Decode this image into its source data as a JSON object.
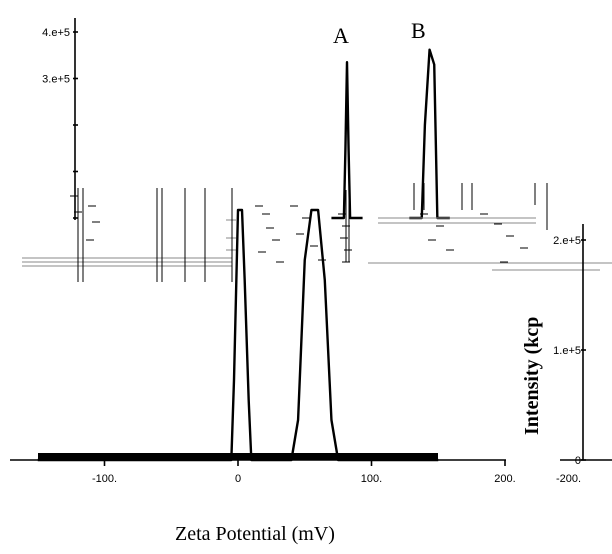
{
  "chart_data": [
    {
      "type": "line",
      "title": "",
      "xlabel": "",
      "ylabel": "",
      "ylim": [
        0,
        400000
      ],
      "yticks": [
        0,
        100000,
        200000,
        300000,
        400000
      ],
      "yticklabels": [
        "",
        "",
        "",
        "3.e+5",
        "4.e+5"
      ],
      "peak_labels": [
        "A",
        "B"
      ],
      "series": [
        {
          "x": [
            70,
            78,
            79,
            80,
            81,
            82,
            90
          ],
          "y": [
            0,
            0,
            150000,
            335000,
            150000,
            0,
            0
          ]
        },
        {
          "x": [
            120,
            128,
            130,
            133,
            136,
            138,
            146
          ],
          "y": [
            0,
            0,
            200000,
            362000,
            330000,
            0,
            0
          ]
        }
      ]
    },
    {
      "type": "line",
      "title": "",
      "xlabel": "Zeta Potential (mV)",
      "ylabel": "",
      "xlim": [
        -150,
        200
      ],
      "xticks": [
        -100,
        0,
        100,
        200
      ],
      "xticklabels": [
        "-100.",
        "0",
        "100.",
        "200."
      ],
      "series": [
        {
          "x": [
            -150,
            -5,
            -3,
            0,
            3,
            5,
            8,
            10,
            40,
            45,
            50,
            55,
            60,
            65,
            70,
            75,
            150
          ],
          "y": [
            0,
            0,
            80,
            250,
            250,
            180,
            60,
            0,
            0,
            40,
            200,
            250,
            250,
            180,
            40,
            0,
            0
          ]
        }
      ]
    },
    {
      "type": "line",
      "title": "",
      "xlabel": "",
      "ylabel": "Intensity (kcp",
      "ylim": [
        0,
        250000
      ],
      "yticks": [
        0,
        100000,
        200000
      ],
      "yticklabels": [
        "0",
        "1.e+5",
        "2.e+5"
      ],
      "xticklabels": [
        "-200."
      ]
    }
  ]
}
